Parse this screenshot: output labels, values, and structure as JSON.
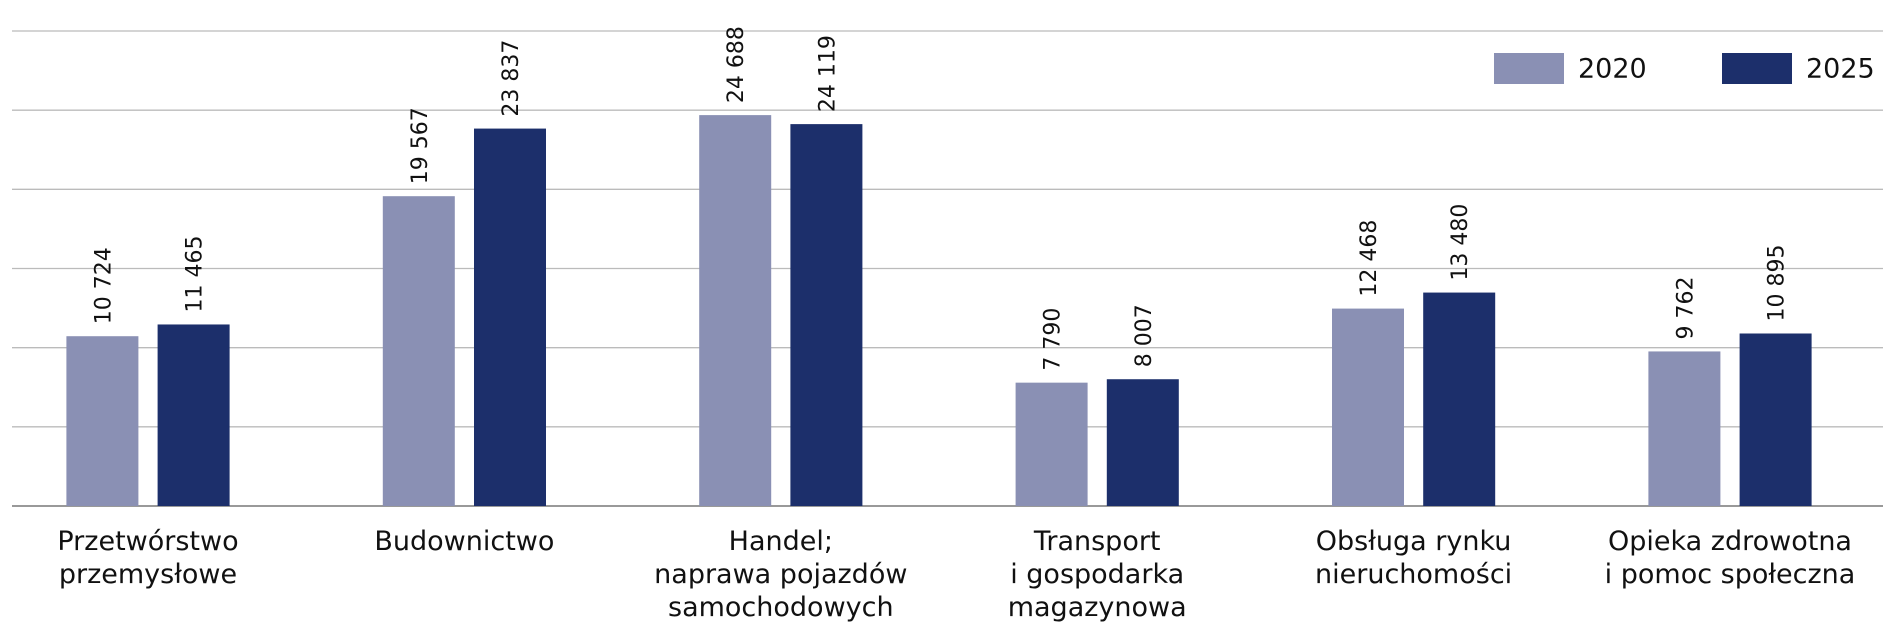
{
  "chart_data": {
    "type": "bar",
    "categories": [
      "Przetwórstwo\nprzemysłowe",
      "Budownictwo",
      "Handel;\nnaprawa pojazdów\nsamochodowych",
      "Transport\ni gospodarka\nmagazynowa",
      "Obsługa rynku\nnieruchomości",
      "Opieka zdrowotna\ni pomoc społeczna"
    ],
    "series": [
      {
        "name": "2020",
        "color": "#8a90b4",
        "values": [
          10724,
          19567,
          24688,
          7790,
          12468,
          9762
        ],
        "value_labels": [
          "10 724",
          "19 567",
          "24 688",
          "7 790",
          "12 468",
          "9 762"
        ]
      },
      {
        "name": "2025",
        "color": "#1c2f6b",
        "values": [
          11465,
          23837,
          24119,
          8007,
          13480,
          10895
        ],
        "value_labels": [
          "11 465",
          "23 837",
          "24 119",
          "8 007",
          "13 480",
          "10 895"
        ]
      }
    ],
    "ylim": [
      0,
      30000
    ],
    "yticks": [
      0,
      5000,
      10000,
      15000,
      20000,
      25000,
      30000
    ],
    "grid": true,
    "legend": "top-right"
  }
}
